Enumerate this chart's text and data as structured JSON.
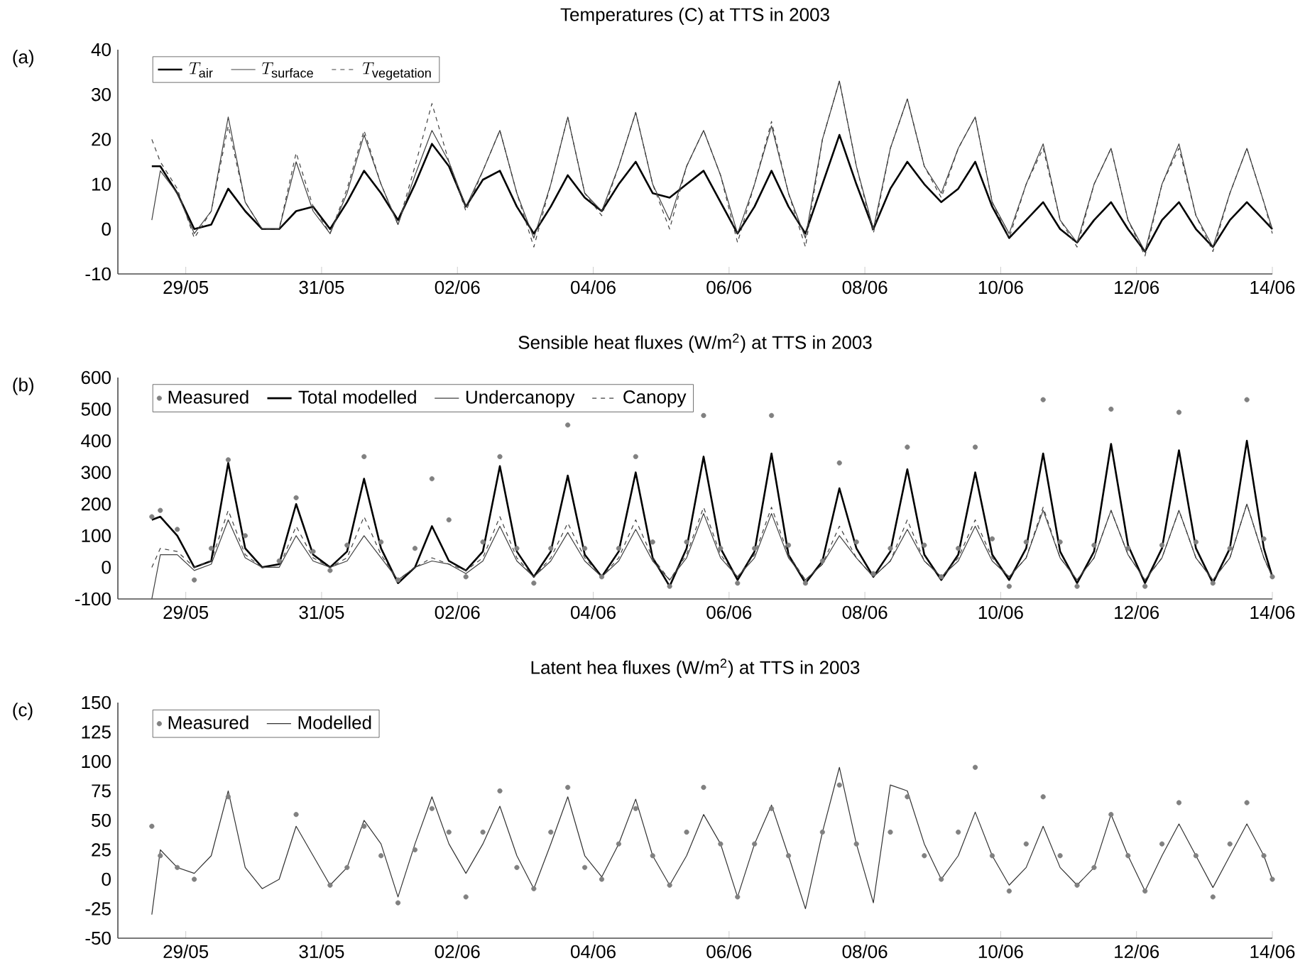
{
  "chart_data": [
    {
      "type": "line",
      "title": "Temperatures (C) at TTS in 2003",
      "annotations": [
        "(a)"
      ],
      "x": [
        "2003-05-28T12:00",
        "2003-05-28T15:00",
        "2003-05-28T21:00",
        "2003-05-29T03:00",
        "2003-05-29T09:00",
        "2003-05-29T15:00",
        "2003-05-29T21:00",
        "2003-05-30T03:00",
        "2003-05-30T09:00",
        "2003-05-30T15:00",
        "2003-05-30T21:00",
        "2003-05-31T03:00",
        "2003-05-31T09:00",
        "2003-05-31T15:00",
        "2003-05-31T21:00",
        "2003-06-01T03:00",
        "2003-06-01T09:00",
        "2003-06-01T15:00",
        "2003-06-01T21:00",
        "2003-06-02T03:00",
        "2003-06-02T09:00",
        "2003-06-02T15:00",
        "2003-06-02T21:00",
        "2003-06-03T03:00",
        "2003-06-03T09:00",
        "2003-06-03T15:00",
        "2003-06-03T21:00",
        "2003-06-04T03:00",
        "2003-06-04T09:00",
        "2003-06-04T15:00",
        "2003-06-04T21:00",
        "2003-06-05T03:00",
        "2003-06-05T09:00",
        "2003-06-05T15:00",
        "2003-06-05T21:00",
        "2003-06-06T03:00",
        "2003-06-06T09:00",
        "2003-06-06T15:00",
        "2003-06-06T21:00",
        "2003-06-07T03:00",
        "2003-06-07T09:00",
        "2003-06-07T15:00",
        "2003-06-07T21:00",
        "2003-06-08T03:00",
        "2003-06-08T09:00",
        "2003-06-08T15:00",
        "2003-06-08T21:00",
        "2003-06-09T03:00",
        "2003-06-09T09:00",
        "2003-06-09T15:00",
        "2003-06-09T21:00",
        "2003-06-10T03:00",
        "2003-06-10T09:00",
        "2003-06-10T15:00",
        "2003-06-10T21:00",
        "2003-06-11T03:00",
        "2003-06-11T09:00",
        "2003-06-11T15:00",
        "2003-06-11T21:00",
        "2003-06-12T03:00",
        "2003-06-12T09:00",
        "2003-06-12T15:00",
        "2003-06-12T21:00",
        "2003-06-13T03:00",
        "2003-06-13T09:00",
        "2003-06-13T15:00",
        "2003-06-13T21:00",
        "2003-06-14T00:00"
      ],
      "series": [
        {
          "name": "T_{\\mathrm{air}}",
          "color": "#000000",
          "line_style": "solid",
          "values": [
            14,
            14,
            8,
            0,
            1,
            9,
            4,
            0,
            0,
            4,
            5,
            0,
            6,
            13,
            8,
            2,
            10,
            19,
            14,
            5,
            11,
            13,
            5,
            -1,
            5,
            12,
            7,
            4,
            10,
            15,
            8,
            7,
            10,
            13,
            6,
            -1,
            5,
            13,
            5,
            -1,
            10,
            21,
            10,
            0,
            9,
            15,
            10,
            6,
            9,
            15,
            5,
            -2,
            2,
            6,
            0,
            -3,
            2,
            6,
            0,
            -5,
            2,
            6,
            0,
            -4,
            2,
            6,
            2,
            0
          ]
        },
        {
          "name": "T_{\\mathrm{surface}}",
          "color": "#404040",
          "line_style": "solid",
          "values": [
            2,
            13,
            8,
            -1,
            4,
            25,
            6,
            0,
            0,
            15,
            4,
            -1,
            8,
            21,
            10,
            1,
            12,
            22,
            15,
            5,
            13,
            22,
            8,
            -2,
            10,
            25,
            8,
            4,
            14,
            26,
            10,
            2,
            14,
            22,
            12,
            -1,
            10,
            23,
            8,
            -2,
            20,
            33,
            14,
            0,
            18,
            29,
            14,
            8,
            18,
            25,
            6,
            -1,
            10,
            19,
            2,
            -3,
            10,
            18,
            2,
            -5,
            10,
            19,
            3,
            -4,
            8,
            18,
            6,
            0
          ]
        },
        {
          "name": "T_{\\mathrm{vegetation}}",
          "color": "#404040",
          "line_style": "dashed",
          "values": [
            20,
            15,
            9,
            -2,
            4,
            23,
            6,
            0,
            0,
            17,
            5,
            -1,
            9,
            22,
            10,
            1,
            14,
            28,
            15,
            4,
            13,
            22,
            8,
            -4,
            10,
            25,
            8,
            3,
            14,
            26,
            10,
            0,
            14,
            22,
            12,
            -3,
            10,
            24,
            8,
            -4,
            20,
            33,
            14,
            -1,
            18,
            29,
            14,
            7,
            18,
            25,
            6,
            -2,
            10,
            18,
            2,
            -4,
            10,
            18,
            2,
            -6,
            10,
            18,
            3,
            -5,
            8,
            18,
            6,
            -1
          ]
        }
      ],
      "xlim": [
        "2003-05-28",
        "2003-06-14"
      ],
      "xticks": [
        {
          "value": "2003-05-29",
          "label": "29/05"
        },
        {
          "value": "2003-05-31",
          "label": "31/05"
        },
        {
          "value": "2003-06-02",
          "label": "02/06"
        },
        {
          "value": "2003-06-04",
          "label": "04/06"
        },
        {
          "value": "2003-06-06",
          "label": "06/06"
        },
        {
          "value": "2003-06-08",
          "label": "08/06"
        },
        {
          "value": "2003-06-10",
          "label": "10/06"
        },
        {
          "value": "2003-06-12",
          "label": "12/06"
        },
        {
          "value": "2003-06-14",
          "label": "14/06"
        }
      ],
      "ylim": [
        -10,
        40
      ],
      "yticks": [
        -10,
        0,
        10,
        20,
        30,
        40
      ],
      "legend": "top left",
      "marker": "none"
    },
    {
      "type": "line",
      "title": "Sensible heat fluxes (W/m$^{2}$) at TTS in 2003",
      "annotations": [
        "(b)"
      ],
      "x": [
        "2003-05-28T12:00",
        "2003-05-28T15:00",
        "2003-05-28T21:00",
        "2003-05-29T03:00",
        "2003-05-29T09:00",
        "2003-05-29T15:00",
        "2003-05-29T21:00",
        "2003-05-30T03:00",
        "2003-05-30T09:00",
        "2003-05-30T15:00",
        "2003-05-30T21:00",
        "2003-05-31T03:00",
        "2003-05-31T09:00",
        "2003-05-31T15:00",
        "2003-05-31T21:00",
        "2003-06-01T03:00",
        "2003-06-01T09:00",
        "2003-06-01T15:00",
        "2003-06-01T21:00",
        "2003-06-02T03:00",
        "2003-06-02T09:00",
        "2003-06-02T15:00",
        "2003-06-02T21:00",
        "2003-06-03T03:00",
        "2003-06-03T09:00",
        "2003-06-03T15:00",
        "2003-06-03T21:00",
        "2003-06-04T03:00",
        "2003-06-04T09:00",
        "2003-06-04T15:00",
        "2003-06-04T21:00",
        "2003-06-05T03:00",
        "2003-06-05T09:00",
        "2003-06-05T15:00",
        "2003-06-05T21:00",
        "2003-06-06T03:00",
        "2003-06-06T09:00",
        "2003-06-06T15:00",
        "2003-06-06T21:00",
        "2003-06-07T03:00",
        "2003-06-07T09:00",
        "2003-06-07T15:00",
        "2003-06-07T21:00",
        "2003-06-08T03:00",
        "2003-06-08T09:00",
        "2003-06-08T15:00",
        "2003-06-08T21:00",
        "2003-06-09T03:00",
        "2003-06-09T09:00",
        "2003-06-09T15:00",
        "2003-06-09T21:00",
        "2003-06-10T03:00",
        "2003-06-10T09:00",
        "2003-06-10T15:00",
        "2003-06-10T21:00",
        "2003-06-11T03:00",
        "2003-06-11T09:00",
        "2003-06-11T15:00",
        "2003-06-11T21:00",
        "2003-06-12T03:00",
        "2003-06-12T09:00",
        "2003-06-12T15:00",
        "2003-06-12T21:00",
        "2003-06-13T03:00",
        "2003-06-13T09:00",
        "2003-06-13T15:00",
        "2003-06-13T21:00",
        "2003-06-14T00:00"
      ],
      "series": [
        {
          "name": "Measured",
          "type": "scatter",
          "marker": "circle",
          "color": "#808080",
          "values": [
            160,
            180,
            120,
            -40,
            60,
            340,
            100,
            null,
            20,
            220,
            50,
            -10,
            70,
            350,
            80,
            -40,
            60,
            280,
            150,
            -30,
            80,
            350,
            60,
            -50,
            60,
            450,
            60,
            -30,
            60,
            350,
            80,
            -60,
            80,
            480,
            60,
            -50,
            60,
            480,
            70,
            -50,
            20,
            330,
            80,
            -20,
            60,
            380,
            70,
            -30,
            60,
            380,
            90,
            -60,
            80,
            530,
            80,
            -60,
            70,
            500,
            60,
            -60,
            70,
            490,
            80,
            -50,
            60,
            530,
            90,
            -30
          ]
        },
        {
          "name": "Total modelled",
          "color": "#000000",
          "line_style": "solid",
          "values": [
            150,
            160,
            100,
            0,
            20,
            330,
            60,
            0,
            10,
            200,
            40,
            0,
            50,
            280,
            60,
            -50,
            0,
            130,
            20,
            -10,
            50,
            320,
            50,
            -30,
            50,
            290,
            40,
            -30,
            50,
            300,
            30,
            -60,
            60,
            350,
            60,
            -40,
            50,
            360,
            40,
            -50,
            20,
            250,
            60,
            -30,
            50,
            310,
            40,
            -40,
            40,
            300,
            40,
            -40,
            60,
            360,
            50,
            -50,
            50,
            390,
            70,
            -50,
            60,
            370,
            60,
            -50,
            60,
            400,
            60,
            -30
          ]
        },
        {
          "name": "Undercanopy",
          "color": "#404040",
          "line_style": "solid",
          "values": [
            -100,
            40,
            40,
            -10,
            10,
            150,
            30,
            0,
            0,
            100,
            20,
            0,
            20,
            100,
            30,
            -40,
            0,
            20,
            10,
            -20,
            20,
            130,
            20,
            -30,
            20,
            110,
            20,
            -30,
            20,
            120,
            20,
            -40,
            30,
            170,
            30,
            -30,
            30,
            170,
            30,
            -40,
            10,
            100,
            30,
            -30,
            20,
            120,
            20,
            -30,
            20,
            130,
            20,
            -30,
            30,
            180,
            30,
            -40,
            30,
            180,
            40,
            -40,
            30,
            180,
            30,
            -40,
            30,
            200,
            30,
            -30
          ]
        },
        {
          "name": "Canopy",
          "color": "#404040",
          "line_style": "dashed",
          "values": [
            0,
            60,
            50,
            0,
            20,
            180,
            40,
            0,
            0,
            130,
            30,
            0,
            30,
            160,
            40,
            -40,
            0,
            30,
            10,
            -10,
            30,
            160,
            30,
            -30,
            30,
            140,
            30,
            -30,
            30,
            150,
            30,
            -40,
            40,
            190,
            40,
            -30,
            40,
            190,
            40,
            -40,
            10,
            130,
            30,
            -30,
            20,
            150,
            20,
            -30,
            30,
            150,
            30,
            -30,
            30,
            190,
            30,
            -40,
            30,
            180,
            40,
            -40,
            30,
            180,
            30,
            -40,
            30,
            200,
            30,
            -30
          ]
        }
      ],
      "xlim": [
        "2003-05-28",
        "2003-06-14"
      ],
      "xticks": [
        {
          "value": "2003-05-29",
          "label": "29/05"
        },
        {
          "value": "2003-05-31",
          "label": "31/05"
        },
        {
          "value": "2003-06-02",
          "label": "02/06"
        },
        {
          "value": "2003-06-04",
          "label": "04/06"
        },
        {
          "value": "2003-06-06",
          "label": "06/06"
        },
        {
          "value": "2003-06-08",
          "label": "08/06"
        },
        {
          "value": "2003-06-10",
          "label": "10/06"
        },
        {
          "value": "2003-06-12",
          "label": "12/06"
        },
        {
          "value": "2003-06-14",
          "label": "14/06"
        }
      ],
      "ylim": [
        -100,
        600
      ],
      "yticks": [
        -100,
        0,
        100,
        200,
        300,
        400,
        500,
        600
      ],
      "legend": "top left",
      "marker": "none"
    },
    {
      "type": "line",
      "title": "Latent hea fluxes (W/m$^{2}$) at TTS in 2003",
      "annotations": [
        "(c)"
      ],
      "x": [
        "2003-05-28T12:00",
        "2003-05-28T15:00",
        "2003-05-28T21:00",
        "2003-05-29T03:00",
        "2003-05-29T09:00",
        "2003-05-29T15:00",
        "2003-05-29T21:00",
        "2003-05-30T03:00",
        "2003-05-30T09:00",
        "2003-05-30T15:00",
        "2003-05-30T21:00",
        "2003-05-31T03:00",
        "2003-05-31T09:00",
        "2003-05-31T15:00",
        "2003-05-31T21:00",
        "2003-06-01T03:00",
        "2003-06-01T09:00",
        "2003-06-01T15:00",
        "2003-06-01T21:00",
        "2003-06-02T03:00",
        "2003-06-02T09:00",
        "2003-06-02T15:00",
        "2003-06-02T21:00",
        "2003-06-03T03:00",
        "2003-06-03T09:00",
        "2003-06-03T15:00",
        "2003-06-03T21:00",
        "2003-06-04T03:00",
        "2003-06-04T09:00",
        "2003-06-04T15:00",
        "2003-06-04T21:00",
        "2003-06-05T03:00",
        "2003-06-05T09:00",
        "2003-06-05T15:00",
        "2003-06-05T21:00",
        "2003-06-06T03:00",
        "2003-06-06T09:00",
        "2003-06-06T15:00",
        "2003-06-06T21:00",
        "2003-06-07T03:00",
        "2003-06-07T09:00",
        "2003-06-07T15:00",
        "2003-06-07T21:00",
        "2003-06-08T03:00",
        "2003-06-08T09:00",
        "2003-06-08T15:00",
        "2003-06-08T21:00",
        "2003-06-09T03:00",
        "2003-06-09T09:00",
        "2003-06-09T15:00",
        "2003-06-09T21:00",
        "2003-06-10T03:00",
        "2003-06-10T09:00",
        "2003-06-10T15:00",
        "2003-06-10T21:00",
        "2003-06-11T03:00",
        "2003-06-11T09:00",
        "2003-06-11T15:00",
        "2003-06-11T21:00",
        "2003-06-12T03:00",
        "2003-06-12T09:00",
        "2003-06-12T15:00",
        "2003-06-12T21:00",
        "2003-06-13T03:00",
        "2003-06-13T09:00",
        "2003-06-13T15:00",
        "2003-06-13T21:00",
        "2003-06-14T00:00"
      ],
      "series": [
        {
          "name": "Measured",
          "type": "scatter",
          "marker": "circle",
          "color": "#808080",
          "values": [
            45,
            20,
            10,
            0,
            null,
            70,
            null,
            null,
            null,
            55,
            null,
            -5,
            10,
            45,
            20,
            -20,
            25,
            60,
            40,
            -15,
            40,
            75,
            10,
            -8,
            40,
            78,
            10,
            0,
            30,
            60,
            20,
            -5,
            40,
            78,
            30,
            -15,
            30,
            60,
            20,
            null,
            40,
            80,
            30,
            null,
            40,
            70,
            20,
            0,
            40,
            95,
            20,
            -10,
            30,
            70,
            20,
            -5,
            10,
            55,
            20,
            -10,
            30,
            65,
            20,
            -15,
            30,
            65,
            20,
            0
          ]
        },
        {
          "name": "Modelled",
          "color": "#333333",
          "line_style": "solid",
          "values": [
            -30,
            25,
            10,
            5,
            20,
            75,
            10,
            -8,
            0,
            45,
            20,
            -5,
            10,
            50,
            30,
            -15,
            30,
            70,
            30,
            5,
            30,
            62,
            20,
            -8,
            30,
            70,
            20,
            2,
            30,
            68,
            20,
            -5,
            20,
            55,
            30,
            -15,
            30,
            63,
            20,
            -25,
            40,
            95,
            30,
            -20,
            80,
            75,
            30,
            0,
            20,
            57,
            20,
            -5,
            10,
            45,
            10,
            -5,
            10,
            55,
            20,
            -10,
            20,
            47,
            20,
            -7,
            20,
            47,
            20,
            0
          ]
        }
      ],
      "xlim": [
        "2003-05-28",
        "2003-06-14"
      ],
      "xticks": [
        {
          "value": "2003-05-29",
          "label": "29/05"
        },
        {
          "value": "2003-05-31",
          "label": "31/05"
        },
        {
          "value": "2003-06-02",
          "label": "02/06"
        },
        {
          "value": "2003-06-04",
          "label": "04/06"
        },
        {
          "value": "2003-06-06",
          "label": "06/06"
        },
        {
          "value": "2003-06-08",
          "label": "08/06"
        },
        {
          "value": "2003-06-10",
          "label": "10/06"
        },
        {
          "value": "2003-06-12",
          "label": "12/06"
        },
        {
          "value": "2003-06-14",
          "label": "14/06"
        }
      ],
      "ylim": [
        -50,
        150
      ],
      "yticks": [
        -50,
        -25,
        0,
        25,
        50,
        75,
        100,
        125,
        150
      ],
      "legend": "top left",
      "marker": "none"
    }
  ]
}
